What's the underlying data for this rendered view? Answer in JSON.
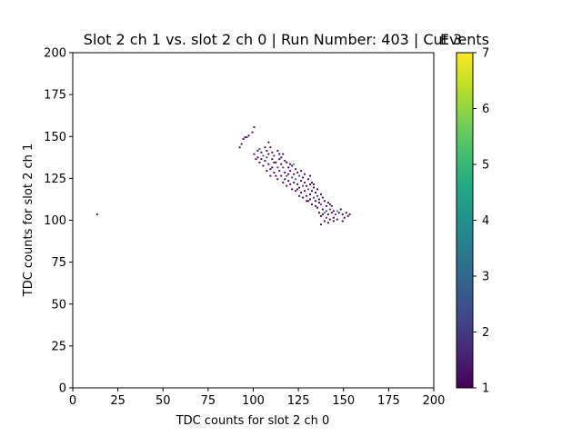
{
  "chart_data": {
    "type": "heatmap",
    "title": "Slot 2 ch 1 vs. slot 2 ch 0 | Run Number: 403 | Cut 3",
    "xlabel": "TDC counts for slot 2 ch 0",
    "ylabel": "TDC counts for slot 2 ch 1",
    "xlim": [
      0,
      200
    ],
    "ylim": [
      0,
      200
    ],
    "xticks": [
      "0",
      "25",
      "50",
      "75",
      "100",
      "125",
      "150",
      "175",
      "200"
    ],
    "yticks": [
      "0",
      "25",
      "50",
      "75",
      "100",
      "125",
      "150",
      "175",
      "200"
    ],
    "bin_size": 1,
    "colorbar": {
      "label": "Events",
      "colormap": "viridis",
      "range": [
        1,
        7
      ],
      "ticks": [
        "1",
        "2",
        "3",
        "4",
        "5",
        "6",
        "7"
      ]
    },
    "colors": {
      "1": "#440154",
      "2": "#443983",
      "3": "#31688e",
      "4": "#21918c",
      "5": "#35b779",
      "6": "#90d743",
      "7": "#fde725"
    },
    "cells": [
      [
        13,
        103,
        1
      ],
      [
        92,
        143,
        1
      ],
      [
        93,
        145,
        1
      ],
      [
        94,
        148,
        1
      ],
      [
        95,
        149,
        1
      ],
      [
        96,
        149,
        2
      ],
      [
        97,
        150,
        1
      ],
      [
        99,
        152,
        1
      ],
      [
        100,
        155,
        1
      ],
      [
        100,
        139,
        1
      ],
      [
        101,
        136,
        1
      ],
      [
        102,
        141,
        1
      ],
      [
        102,
        137,
        1
      ],
      [
        103,
        142,
        2
      ],
      [
        103,
        134,
        1
      ],
      [
        104,
        140,
        1
      ],
      [
        104,
        136,
        1
      ],
      [
        105,
        138,
        3
      ],
      [
        105,
        132,
        1
      ],
      [
        106,
        143,
        1
      ],
      [
        106,
        135,
        1
      ],
      [
        107,
        141,
        1
      ],
      [
        107,
        137,
        2
      ],
      [
        107,
        129,
        1
      ],
      [
        108,
        146,
        1
      ],
      [
        108,
        139,
        1
      ],
      [
        108,
        133,
        1
      ],
      [
        109,
        143,
        1
      ],
      [
        109,
        130,
        1
      ],
      [
        109,
        126,
        1
      ],
      [
        110,
        140,
        1
      ],
      [
        110,
        136,
        1
      ],
      [
        110,
        131,
        1
      ],
      [
        111,
        138,
        2
      ],
      [
        111,
        128,
        1
      ],
      [
        112,
        134,
        1
      ],
      [
        112,
        126,
        1
      ],
      [
        113,
        141,
        1
      ],
      [
        113,
        131,
        2
      ],
      [
        113,
        124,
        1
      ],
      [
        114,
        136,
        1
      ],
      [
        114,
        129,
        1
      ],
      [
        115,
        133,
        1
      ],
      [
        115,
        126,
        1
      ],
      [
        116,
        139,
        1
      ],
      [
        116,
        131,
        2
      ],
      [
        116,
        122,
        1
      ],
      [
        117,
        128,
        1
      ],
      [
        117,
        124,
        1
      ],
      [
        118,
        134,
        1
      ],
      [
        118,
        126,
        2
      ],
      [
        118,
        120,
        1
      ],
      [
        119,
        131,
        1
      ],
      [
        119,
        123,
        1
      ],
      [
        120,
        129,
        1
      ],
      [
        120,
        121,
        1
      ],
      [
        121,
        132,
        1
      ],
      [
        121,
        125,
        2
      ],
      [
        121,
        118,
        1
      ],
      [
        122,
        133,
        4
      ],
      [
        122,
        127,
        1
      ],
      [
        122,
        122,
        1
      ],
      [
        123,
        130,
        1
      ],
      [
        123,
        124,
        3
      ],
      [
        123,
        117,
        1
      ],
      [
        124,
        128,
        1
      ],
      [
        124,
        121,
        1
      ],
      [
        125,
        126,
        2
      ],
      [
        125,
        119,
        1
      ],
      [
        126,
        123,
        1
      ],
      [
        126,
        116,
        1
      ],
      [
        127,
        125,
        1
      ],
      [
        127,
        120,
        2
      ],
      [
        127,
        113,
        1
      ],
      [
        128,
        127,
        1
      ],
      [
        128,
        122,
        1
      ],
      [
        128,
        117,
        1
      ],
      [
        129,
        120,
        1
      ],
      [
        129,
        114,
        1
      ],
      [
        130,
        124,
        1
      ],
      [
        130,
        118,
        2
      ],
      [
        130,
        111,
        1
      ],
      [
        131,
        126,
        1
      ],
      [
        131,
        121,
        1
      ],
      [
        131,
        115,
        1
      ],
      [
        132,
        122,
        1
      ],
      [
        132,
        117,
        1
      ],
      [
        132,
        109,
        1
      ],
      [
        133,
        119,
        1
      ],
      [
        133,
        113,
        2
      ],
      [
        134,
        116,
        1
      ],
      [
        134,
        111,
        1
      ],
      [
        135,
        118,
        1
      ],
      [
        135,
        114,
        2
      ],
      [
        135,
        107,
        1
      ],
      [
        136,
        112,
        1
      ],
      [
        136,
        104,
        1
      ],
      [
        137,
        115,
        1
      ],
      [
        137,
        109,
        2
      ],
      [
        137,
        102,
        1
      ],
      [
        138,
        113,
        1
      ],
      [
        138,
        106,
        1
      ],
      [
        139,
        111,
        1
      ],
      [
        139,
        104,
        3
      ],
      [
        139,
        99,
        1
      ],
      [
        140,
        108,
        1
      ],
      [
        140,
        101,
        2
      ],
      [
        141,
        110,
        1
      ],
      [
        141,
        103,
        1
      ],
      [
        141,
        98,
        1
      ],
      [
        142,
        106,
        2
      ],
      [
        142,
        100,
        1
      ],
      [
        143,
        108,
        1
      ],
      [
        143,
        104,
        1
      ],
      [
        144,
        105,
        1
      ],
      [
        144,
        101,
        1
      ],
      [
        145,
        103,
        2
      ],
      [
        146,
        105,
        4
      ],
      [
        147,
        104,
        1
      ],
      [
        148,
        106,
        1
      ],
      [
        149,
        103,
        1
      ],
      [
        149,
        99,
        1
      ],
      [
        150,
        101,
        1
      ],
      [
        151,
        104,
        1
      ],
      [
        152,
        102,
        1
      ],
      [
        153,
        103,
        1
      ],
      [
        115,
        137,
        1
      ],
      [
        119,
        127,
        1
      ],
      [
        124,
        118,
        1
      ],
      [
        129,
        111,
        1
      ],
      [
        134,
        108,
        1
      ],
      [
        138,
        103,
        1
      ],
      [
        126,
        129,
        1
      ],
      [
        131,
        112,
        1
      ],
      [
        136,
        110,
        1
      ],
      [
        140,
        105,
        2
      ],
      [
        117,
        135,
        1
      ],
      [
        120,
        133,
        1
      ],
      [
        133,
        121,
        1
      ],
      [
        125,
        114,
        1
      ],
      [
        142,
        109,
        1
      ],
      [
        144,
        99,
        1
      ],
      [
        137,
        97,
        1
      ],
      [
        146,
        100,
        1
      ],
      [
        111,
        134,
        1
      ],
      [
        114,
        139,
        1
      ]
    ]
  }
}
